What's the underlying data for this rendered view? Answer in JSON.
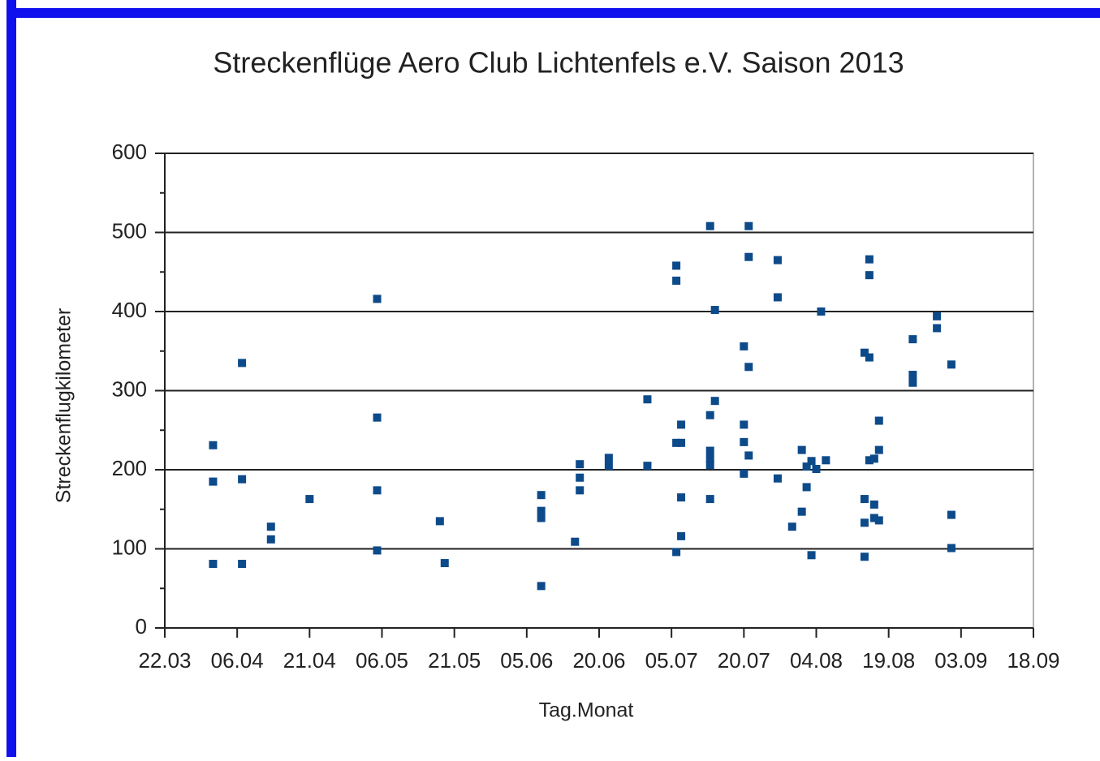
{
  "chart_data": {
    "type": "scatter",
    "title": "Streckenflüge Aero Club Lichtenfels e.V. Saison 2013",
    "xlabel": "Tag.Monat",
    "ylabel": "Streckenflugkilometer",
    "xlim": [
      "22.03",
      "18.09"
    ],
    "xticks": [
      "22.03",
      "06.04",
      "21.04",
      "06.05",
      "21.05",
      "05.06",
      "20.06",
      "05.07",
      "20.07",
      "04.08",
      "19.08",
      "03.09",
      "18.09"
    ],
    "ylim": [
      0,
      600
    ],
    "yticks": [
      0,
      100,
      200,
      300,
      400,
      500,
      600
    ],
    "grid": true,
    "series": [
      {
        "color": "#0d4a8a",
        "x": [
          "01.04",
          "01.04",
          "01.04",
          "07.04",
          "07.04",
          "07.04",
          "13.04",
          "13.04",
          "21.04",
          "05.05",
          "05.05",
          "05.05",
          "05.05",
          "18.05",
          "19.05",
          "08.06",
          "08.06",
          "08.06",
          "08.06",
          "15.06",
          "16.06",
          "16.06",
          "16.06",
          "22.06",
          "22.06",
          "30.06",
          "30.06",
          "06.07",
          "06.07",
          "06.07",
          "06.07",
          "07.07",
          "07.07",
          "07.07",
          "07.07",
          "13.07",
          "13.07",
          "13.07",
          "13.07",
          "13.07",
          "13.07",
          "14.07",
          "14.07",
          "20.07",
          "20.07",
          "20.07",
          "20.07",
          "21.07",
          "21.07",
          "21.07",
          "21.07",
          "27.07",
          "27.07",
          "27.07",
          "30.07",
          "01.08",
          "01.08",
          "02.08",
          "02.08",
          "03.08",
          "03.08",
          "04.08",
          "05.08",
          "06.08",
          "14.08",
          "14.08",
          "14.08",
          "14.08",
          "15.08",
          "15.08",
          "15.08",
          "15.08",
          "16.08",
          "16.08",
          "16.08",
          "17.08",
          "17.08",
          "17.08",
          "24.08",
          "24.08",
          "24.08",
          "29.08",
          "29.08",
          "01.09",
          "01.09",
          "01.09"
        ],
        "values": [
          231,
          185,
          81,
          335,
          188,
          81,
          128,
          112,
          163,
          416,
          266,
          174,
          98,
          135,
          82,
          168,
          148,
          139,
          53,
          109,
          207,
          190,
          174,
          215,
          205,
          289,
          205,
          458,
          439,
          234,
          96,
          257,
          234,
          165,
          116,
          508,
          269,
          224,
          214,
          206,
          163,
          402,
          287,
          356,
          257,
          235,
          195,
          508,
          469,
          330,
          218,
          465,
          418,
          189,
          128,
          225,
          147,
          178,
          204,
          211,
          92,
          201,
          400,
          212,
          348,
          163,
          133,
          90,
          466,
          446,
          342,
          212,
          214,
          156,
          139,
          262,
          225,
          136,
          365,
          320,
          310,
          394,
          379,
          333,
          143,
          101
        ]
      }
    ]
  }
}
